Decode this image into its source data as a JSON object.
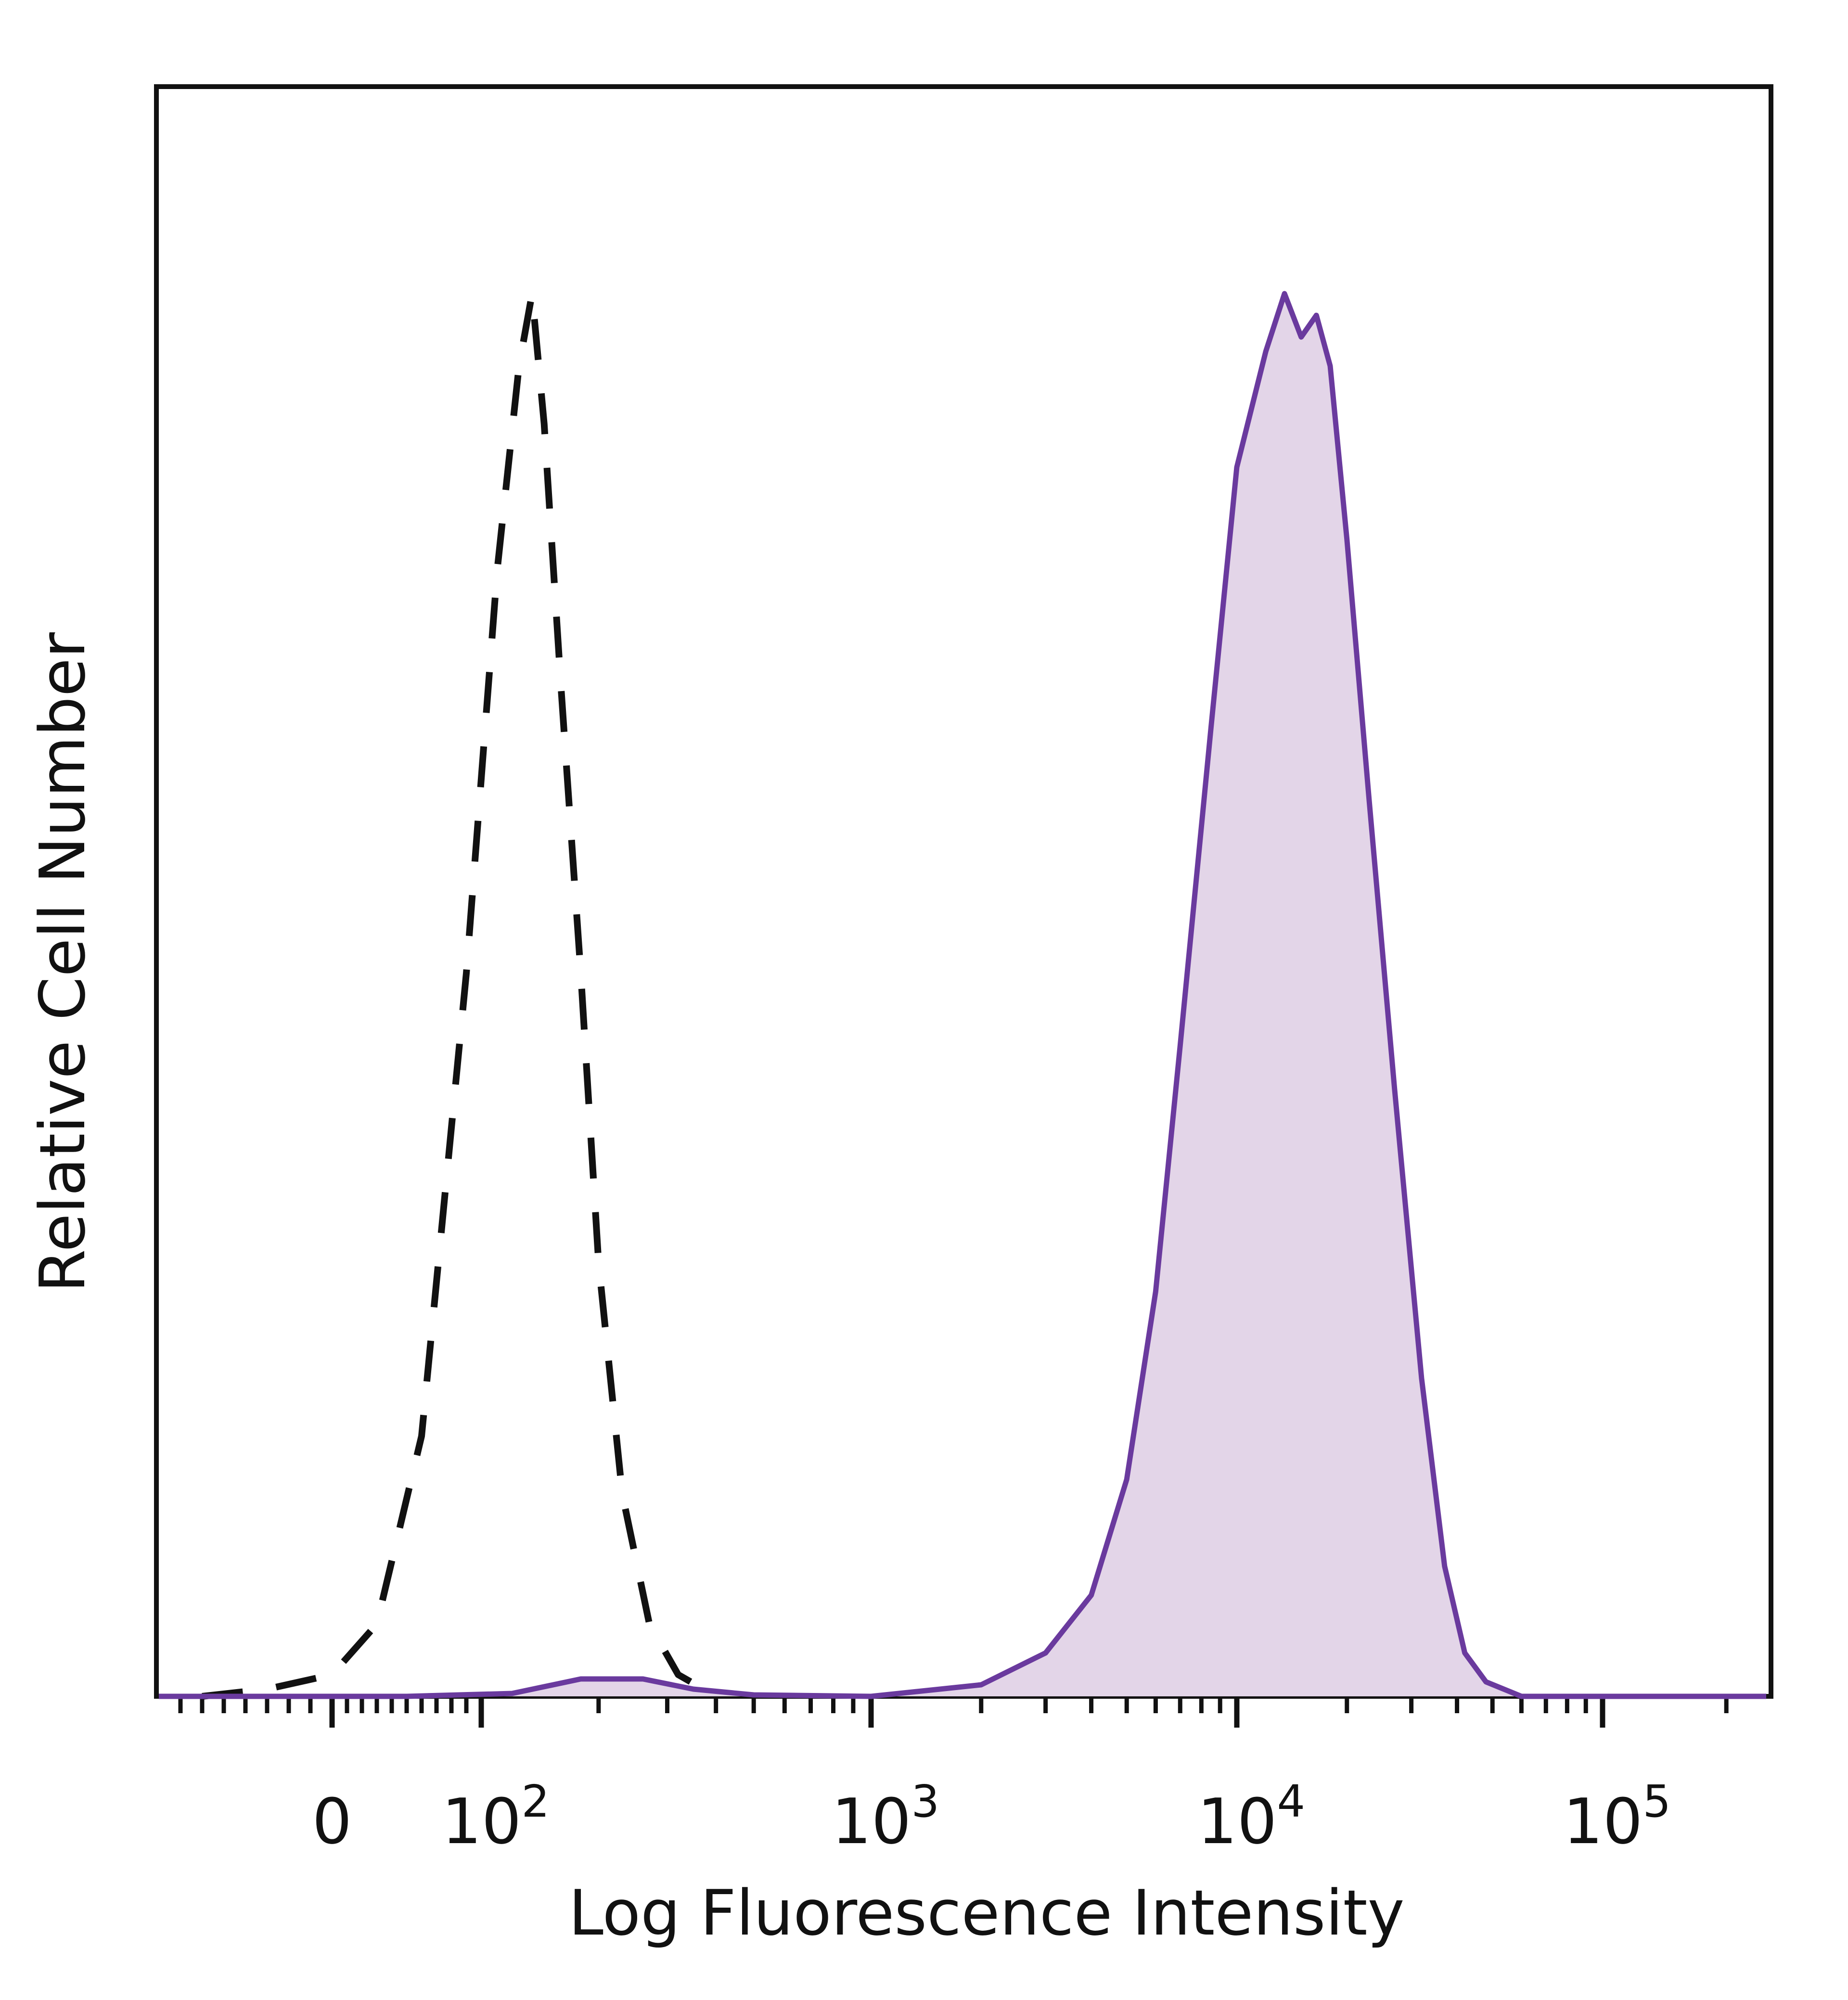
{
  "chart_data": {
    "type": "area",
    "xlabel": "Log Fluorescence Intensity",
    "ylabel": "Relative Cell Number",
    "xscale": "biexponential (log above 10^2, linear near 0)",
    "xlim": [
      -80,
      250000
    ],
    "ylim": [
      0,
      100
    ],
    "grid": false,
    "legend": "none",
    "x_ticks": [
      {
        "value": 0,
        "label": "0"
      },
      {
        "value": 100,
        "base": "10",
        "exp": "2"
      },
      {
        "value": 1000,
        "base": "10",
        "exp": "3"
      },
      {
        "value": 10000,
        "base": "10",
        "exp": "4"
      },
      {
        "value": 100000,
        "base": "10",
        "exp": "5"
      }
    ],
    "series": [
      {
        "style": "dashed",
        "color": "#111111",
        "fill": "none",
        "points": [
          [
            -60,
            0
          ],
          [
            -30,
            0.5
          ],
          [
            0,
            1.5
          ],
          [
            30,
            5
          ],
          [
            60,
            18
          ],
          [
            90,
            50
          ],
          [
            110,
            78
          ],
          [
            125,
            92
          ],
          [
            135,
            97
          ],
          [
            145,
            88
          ],
          [
            160,
            70
          ],
          [
            180,
            50
          ],
          [
            200,
            30
          ],
          [
            230,
            14
          ],
          [
            270,
            5
          ],
          [
            320,
            1.5
          ],
          [
            400,
            0
          ]
        ]
      },
      {
        "style": "solid",
        "color": "#6a3a9e",
        "fill": "#e3d5e8",
        "points": [
          [
            -80,
            0
          ],
          [
            50,
            0
          ],
          [
            120,
            0.2
          ],
          [
            180,
            1.2
          ],
          [
            260,
            1.2
          ],
          [
            350,
            0.5
          ],
          [
            500,
            0.1
          ],
          [
            1000,
            0
          ],
          [
            2000,
            0.8
          ],
          [
            3000,
            3
          ],
          [
            4000,
            7
          ],
          [
            5000,
            15
          ],
          [
            6000,
            28
          ],
          [
            7000,
            45
          ],
          [
            8500,
            67
          ],
          [
            10000,
            85
          ],
          [
            12000,
            93
          ],
          [
            13500,
            97
          ],
          [
            15000,
            94
          ],
          [
            16500,
            95.5
          ],
          [
            18000,
            92
          ],
          [
            20000,
            80
          ],
          [
            23000,
            62
          ],
          [
            27000,
            42
          ],
          [
            32000,
            22
          ],
          [
            37000,
            9
          ],
          [
            42000,
            3
          ],
          [
            48000,
            1
          ],
          [
            60000,
            0
          ],
          [
            250000,
            0
          ]
        ]
      }
    ]
  }
}
